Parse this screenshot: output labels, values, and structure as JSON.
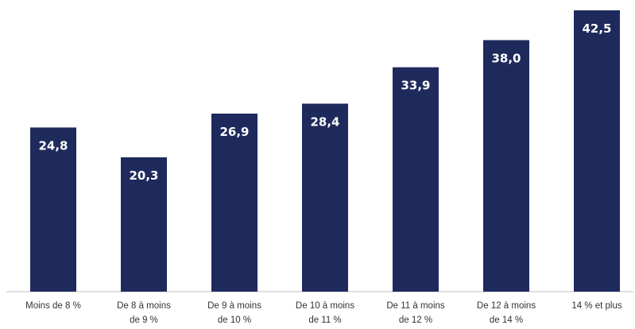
{
  "chart_data": {
    "type": "bar",
    "categories": [
      [
        "Moins de 8 %"
      ],
      [
        "De 8 à moins",
        "de 9 %"
      ],
      [
        "De 9 à moins",
        "de 10 %"
      ],
      [
        "De 10 à moins",
        "de 11 %"
      ],
      [
        "De 11 à moins",
        "de 12 %"
      ],
      [
        "De 12 à moins",
        "de 14 %"
      ],
      [
        "14 % et plus"
      ]
    ],
    "values": [
      24.8,
      20.3,
      26.9,
      28.4,
      33.9,
      38.0,
      42.5
    ],
    "value_labels": [
      "24,8",
      "20,3",
      "26,9",
      "28,4",
      "33,9",
      "38,0",
      "42,5"
    ],
    "bar_color": "#1f2a5c",
    "ylim": [
      0,
      42.5
    ],
    "grid": false,
    "legend": "none"
  }
}
